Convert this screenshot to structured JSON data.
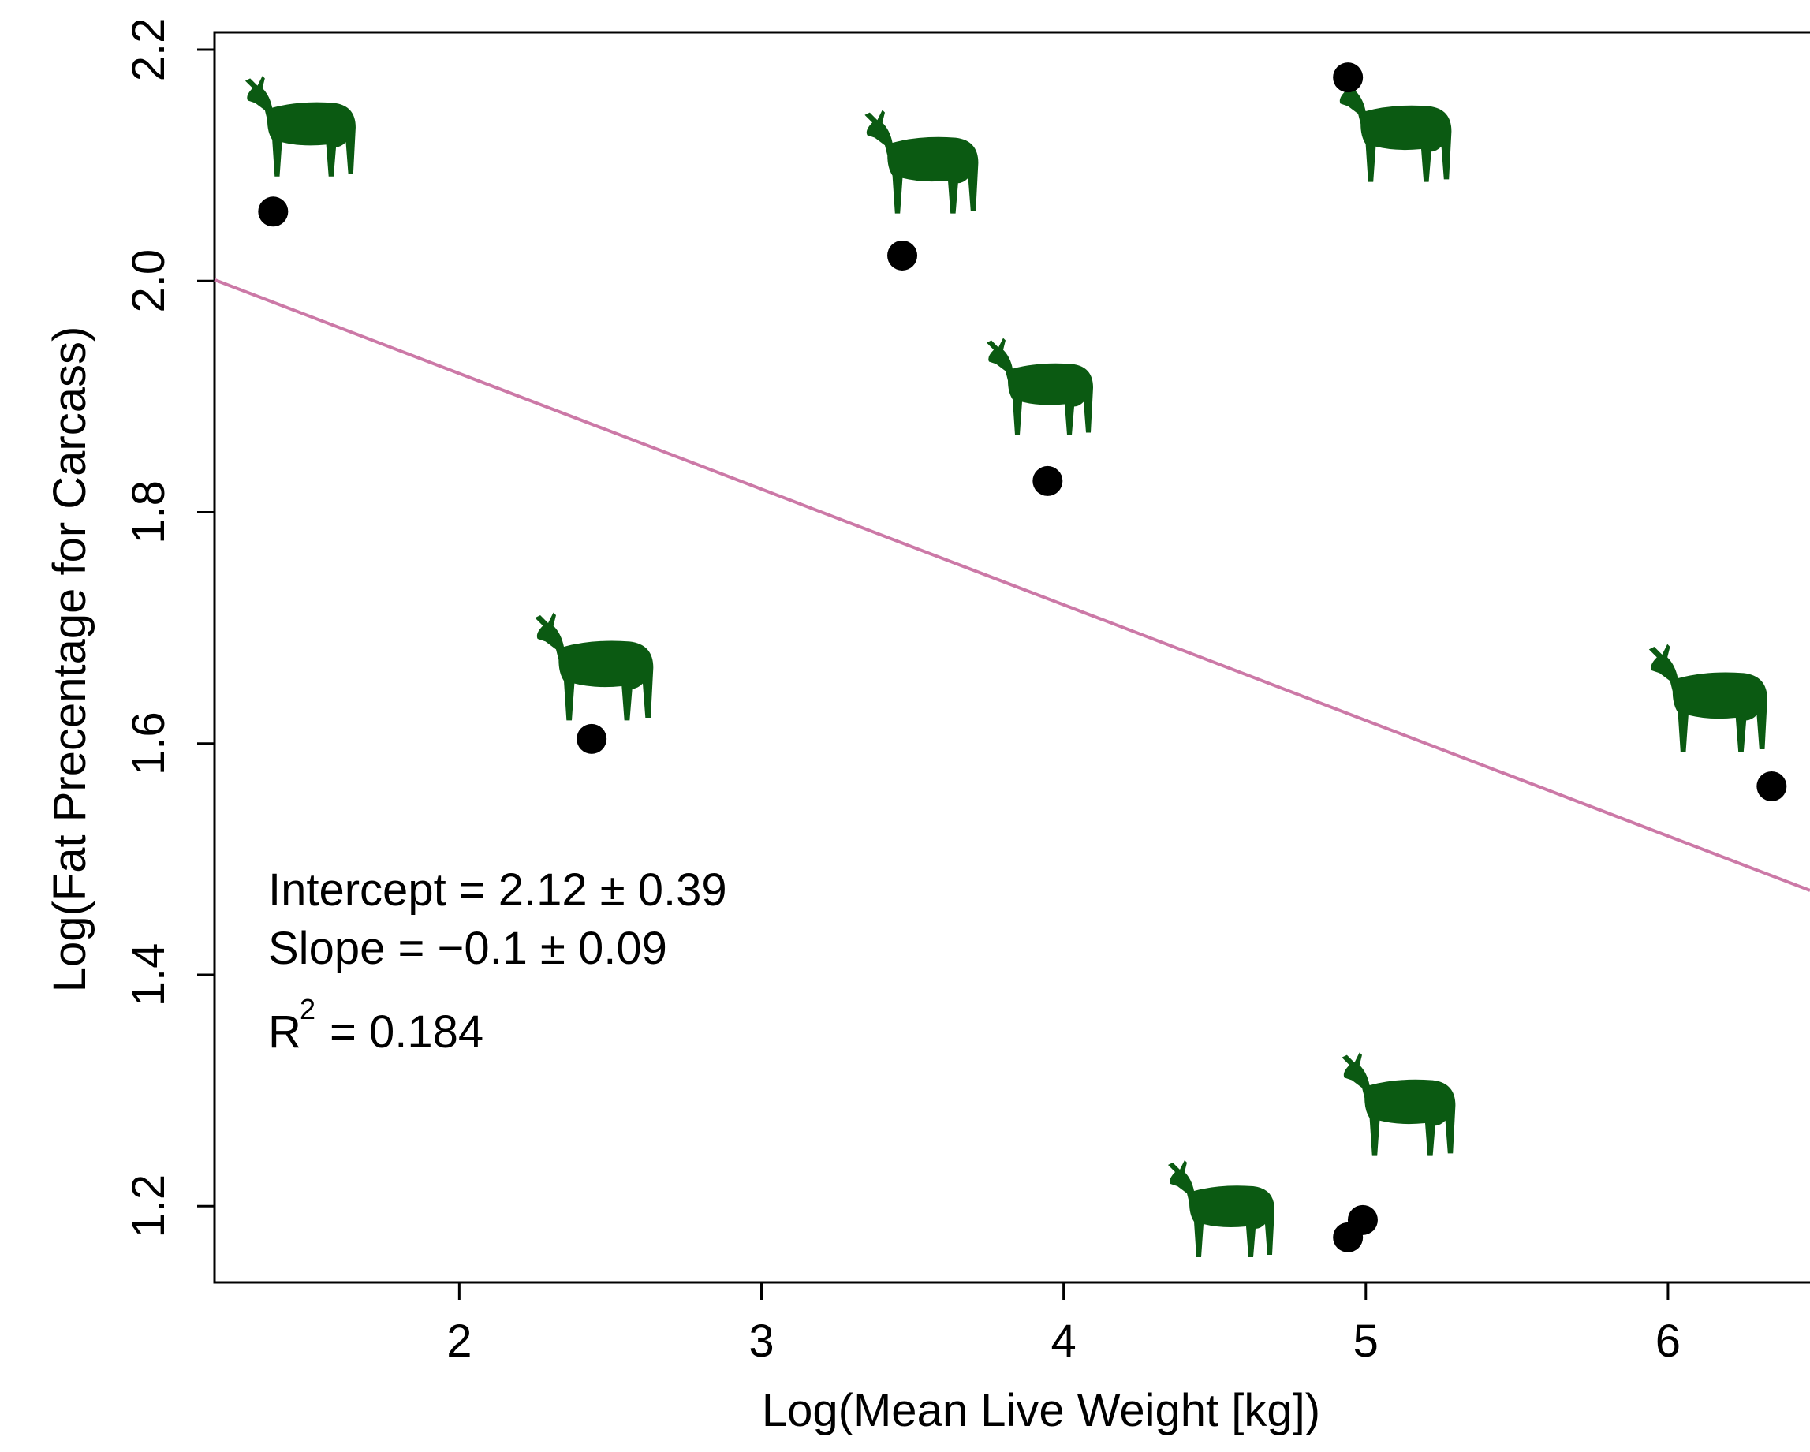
{
  "chart_data": {
    "type": "scatter",
    "x_label": "Log(Mean Live Weight [kg])",
    "y_label": "Log(Fat Precentage for Carcass)",
    "x": [
      1.384,
      3.466,
      4.941,
      3.947,
      2.438,
      6.343,
      4.941,
      4.99
    ],
    "values": [
      2.06,
      2.022,
      2.176,
      1.827,
      1.604,
      1.563,
      1.173,
      1.188
    ],
    "color": "#000000",
    "fit": {
      "intercept": 2.12,
      "slope": -0.1,
      "color": "#cc79a7"
    },
    "annotations": [
      "Intercept = 2.12 ± 0.39",
      "Slope = −0.1 ± 0.09"
    ],
    "r2": {
      "label": "R",
      "sup": "2",
      "text": "= 0.184"
    },
    "xlim": [
      1.19,
      6.47
    ],
    "ylim": [
      1.134,
      2.215
    ],
    "xticks": [
      2,
      3,
      4,
      5,
      6
    ],
    "yticks": [
      1.2,
      1.4,
      1.6,
      1.8,
      2.0,
      2.2
    ]
  }
}
